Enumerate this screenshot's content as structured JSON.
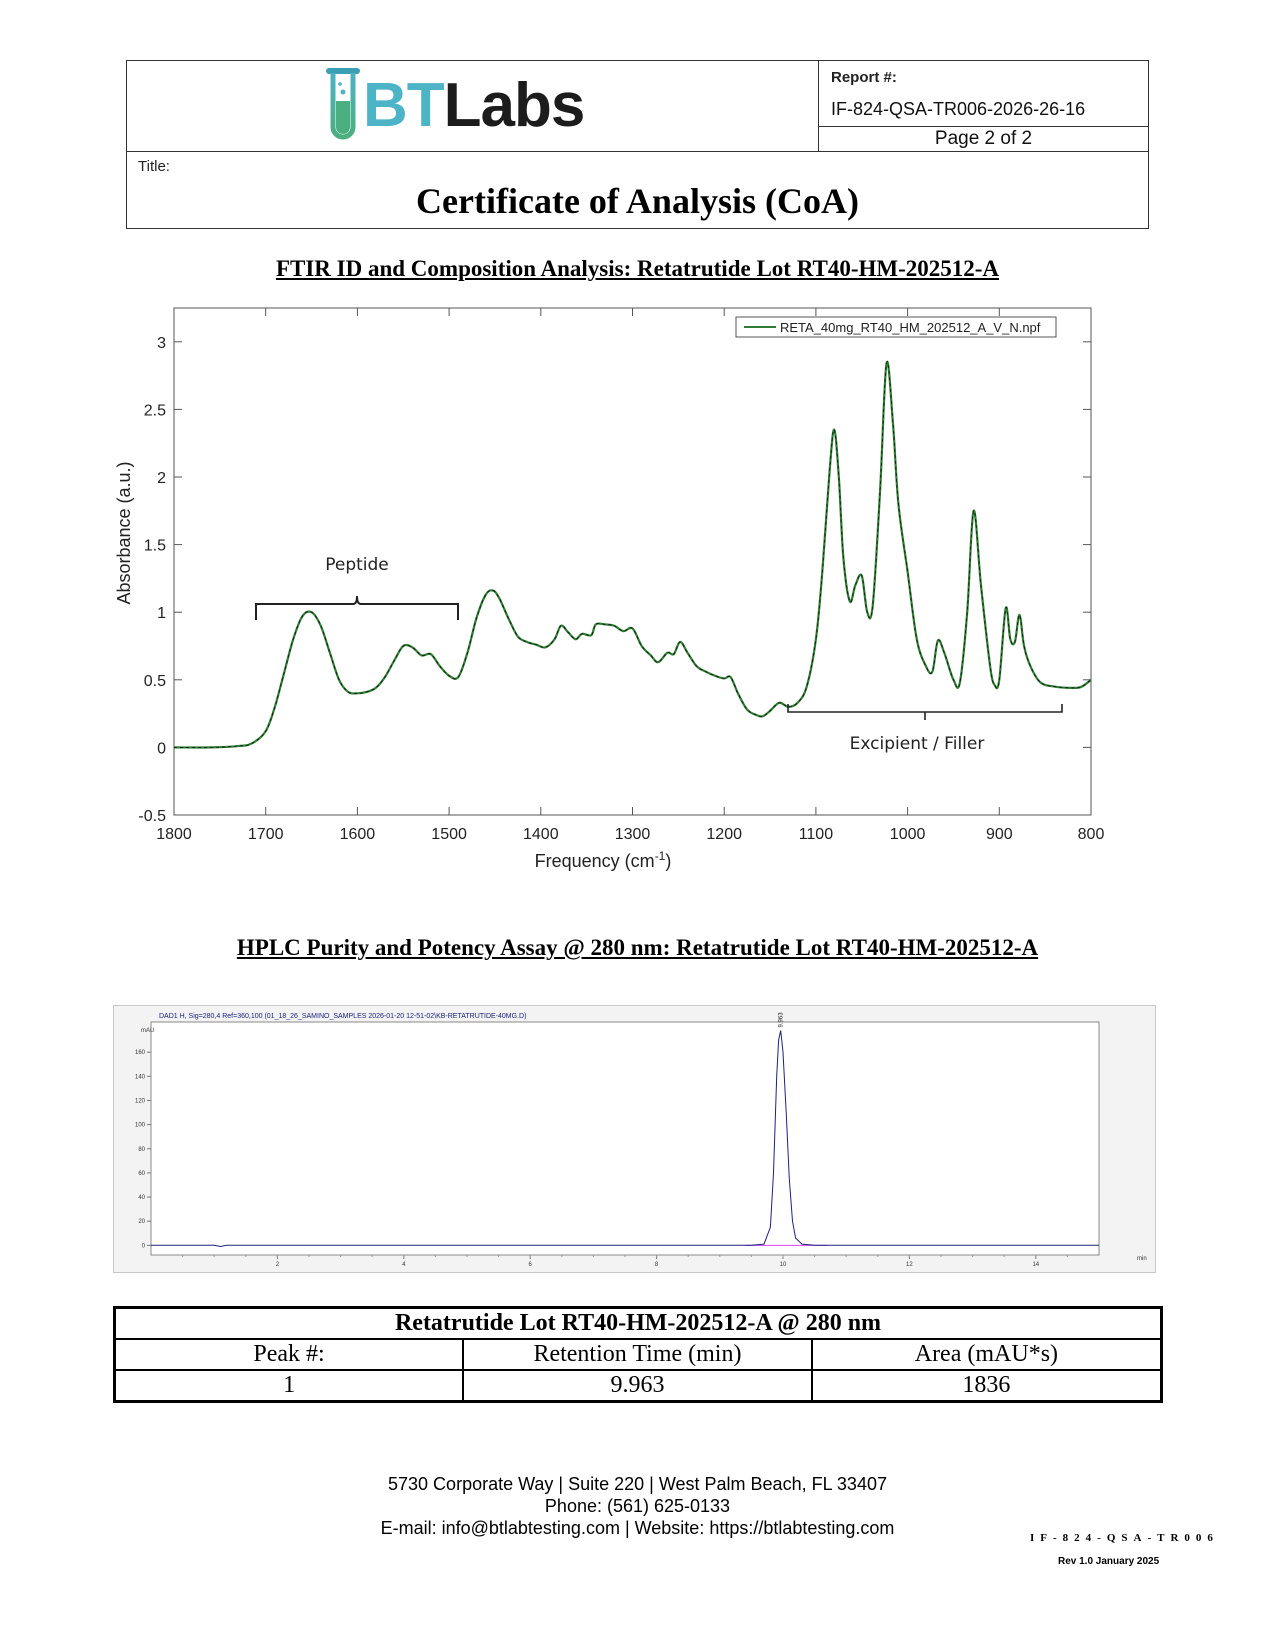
{
  "header": {
    "logo_text_bt": "BT",
    "logo_text_labs": "Labs",
    "report_label": "Report #:",
    "report_number": "IF-824-QSA-TR006-2026-26-16",
    "page": "Page 2 of 2",
    "title_label": "Title:",
    "title": "Certificate of Analysis (CoA)"
  },
  "ftir": {
    "section_title": "FTIR ID and Composition Analysis: Retatrutide Lot RT40-HM-202512-A",
    "annotation_peptide": "Peptide",
    "annotation_excipient": "Excipient / Filler",
    "chart_data": {
      "type": "line",
      "title": "",
      "xlabel": "Frequency (cm⁻¹)",
      "xlabel_base": "Frequency (cm",
      "xlabel_sup": "-1",
      "xlabel_close": ")",
      "ylabel": "Absorbance (a.u.)",
      "xlim": [
        1800,
        800
      ],
      "ylim": [
        -0.5,
        3.25
      ],
      "x_ticks": [
        1800,
        1700,
        1600,
        1500,
        1400,
        1300,
        1200,
        1100,
        1000,
        900,
        800
      ],
      "y_ticks": [
        -0.5,
        0,
        0.5,
        1,
        1.5,
        2,
        2.5,
        3
      ],
      "y_tick_labels": [
        "-0.5",
        "0",
        "0.5",
        "1",
        "1.5",
        "2",
        "2.5",
        "3"
      ],
      "legend": "top-right",
      "line_color": "#2e7d32",
      "series": [
        {
          "name": "RETA_40mg_RT40_HM_202512_A_V_N.npf",
          "x": [
            1800,
            1760,
            1730,
            1715,
            1700,
            1690,
            1680,
            1670,
            1660,
            1650,
            1640,
            1630,
            1620,
            1610,
            1600,
            1590,
            1580,
            1570,
            1560,
            1550,
            1540,
            1530,
            1520,
            1510,
            1500,
            1490,
            1480,
            1470,
            1460,
            1452,
            1445,
            1435,
            1425,
            1415,
            1405,
            1395,
            1385,
            1378,
            1370,
            1362,
            1355,
            1345,
            1340,
            1330,
            1320,
            1310,
            1300,
            1290,
            1280,
            1272,
            1262,
            1255,
            1248,
            1240,
            1230,
            1220,
            1210,
            1200,
            1193,
            1185,
            1175,
            1165,
            1158,
            1150,
            1140,
            1130,
            1120,
            1110,
            1100,
            1093,
            1085,
            1080,
            1075,
            1070,
            1063,
            1057,
            1050,
            1044,
            1038,
            1030,
            1023,
            1016,
            1010,
            1000,
            990,
            980,
            973,
            967,
            960,
            950,
            943,
            935,
            928,
            920,
            910,
            905,
            900,
            893,
            888,
            883,
            878,
            873,
            866,
            855,
            840,
            820,
            810,
            800
          ],
          "y": [
            0.0,
            0.0,
            0.01,
            0.03,
            0.12,
            0.3,
            0.55,
            0.8,
            0.97,
            1.0,
            0.9,
            0.7,
            0.5,
            0.41,
            0.4,
            0.41,
            0.44,
            0.52,
            0.64,
            0.75,
            0.74,
            0.68,
            0.69,
            0.6,
            0.53,
            0.52,
            0.7,
            0.96,
            1.13,
            1.16,
            1.1,
            0.95,
            0.82,
            0.78,
            0.76,
            0.74,
            0.8,
            0.9,
            0.85,
            0.8,
            0.84,
            0.83,
            0.91,
            0.91,
            0.9,
            0.86,
            0.88,
            0.75,
            0.68,
            0.63,
            0.7,
            0.69,
            0.78,
            0.7,
            0.6,
            0.56,
            0.53,
            0.51,
            0.52,
            0.4,
            0.28,
            0.24,
            0.23,
            0.27,
            0.33,
            0.3,
            0.33,
            0.45,
            0.8,
            1.3,
            2.05,
            2.35,
            2.0,
            1.4,
            1.08,
            1.2,
            1.27,
            1.0,
            1.05,
            1.9,
            2.84,
            2.4,
            1.8,
            1.3,
            0.8,
            0.6,
            0.56,
            0.79,
            0.7,
            0.5,
            0.48,
            1.0,
            1.75,
            1.2,
            0.6,
            0.46,
            0.5,
            1.03,
            0.8,
            0.78,
            0.98,
            0.75,
            0.6,
            0.48,
            0.45,
            0.44,
            0.45,
            0.5
          ]
        }
      ]
    }
  },
  "hplc": {
    "section_title": "HPLC Purity and Potency Assay @ 280 nm: Retatrutide Lot RT40-HM-202512-A",
    "chart_data": {
      "type": "line",
      "title": "DAD1 H, Sig=280,4 Ref=360,100 (01_18_26_SAMINO_SAMPLES 2026-01-20 12-51-02\\KB-RETATRUTIDE-40MG.D)",
      "ylabel": "mAU",
      "xlabel": "min",
      "xlim": [
        0,
        15
      ],
      "ylim": [
        -8,
        185
      ],
      "x_ticks": [
        2,
        4,
        6,
        8,
        10,
        12,
        14
      ],
      "y_ticks": [
        0,
        20,
        40,
        60,
        80,
        100,
        120,
        140,
        160
      ],
      "peak_label": "9.963",
      "line_color": "#1a237e",
      "baseline_color": "#e040fb",
      "series": [
        {
          "name": "DAD1 H",
          "x": [
            0,
            1.0,
            1.1,
            1.2,
            2.0,
            3.0,
            4.0,
            5.0,
            6.0,
            7.0,
            8.0,
            9.0,
            9.5,
            9.7,
            9.8,
            9.85,
            9.9,
            9.93,
            9.963,
            10.0,
            10.05,
            10.1,
            10.15,
            10.2,
            10.3,
            10.5,
            11,
            12,
            13,
            14,
            15
          ],
          "y": [
            0,
            0,
            -1,
            0,
            0,
            0,
            0,
            0,
            0,
            0,
            0,
            0,
            0,
            1,
            15,
            60,
            140,
            170,
            178,
            160,
            110,
            55,
            20,
            6,
            1,
            0,
            0,
            0,
            0,
            0,
            0
          ]
        }
      ],
      "peaks": [
        {
          "peak": 1,
          "retention_time_min": 9.963,
          "area_mAU_s": 1836
        }
      ]
    }
  },
  "table": {
    "caption": "Retatrutide Lot RT40-HM-202512-A @ 280 nm",
    "headers": [
      "Peak #:",
      "Retention Time (min)",
      "Area (mAU*s)"
    ],
    "rows": [
      [
        "1",
        "9.963",
        "1836"
      ]
    ]
  },
  "footer": {
    "address": "5730 Corporate Way | Suite 220 | West Palm Beach, FL 33407",
    "phone": "Phone: (561) 625-0133",
    "contact": "E-mail: info@btlabtesting.com | Website: https://btlabtesting.com",
    "doc_code": "IF-824-QSA-TR006",
    "revision": "Rev 1.0 January 2025"
  },
  "colors": {
    "logo_teal": "#4db3c6",
    "logo_green": "#4caf7f",
    "ftir_line": "#2e7d32",
    "hplc_line": "#1a237e"
  }
}
